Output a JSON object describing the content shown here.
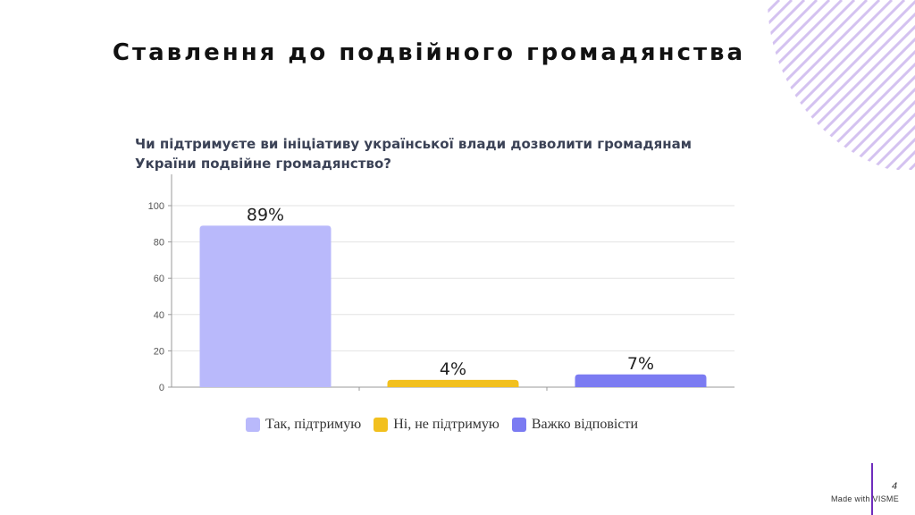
{
  "slide": {
    "title": "Ставлення до подвійного громадянства",
    "page_number": "4",
    "footer_text": "Made with VISME"
  },
  "colors": {
    "decor_stripes": "#d4c2f0",
    "accent_bar": "#6f2dbd"
  },
  "chart_data": {
    "type": "bar",
    "title": "Чи підтримуєте ви ініціативу української влади дозволити громадянам України подвійне громадянство?",
    "categories": [
      "Так, підтримую",
      "Ні, не підтримую",
      "Важко відповісти"
    ],
    "values": [
      89,
      4,
      7
    ],
    "value_labels": [
      "89%",
      "4%",
      "7%"
    ],
    "colors": [
      "#b9b9fb",
      "#f2c01e",
      "#7b7bf2"
    ],
    "ylim": [
      0,
      100
    ],
    "yticks": [
      0,
      20,
      40,
      60,
      80,
      100
    ],
    "grid": true,
    "legend": "bottom"
  }
}
